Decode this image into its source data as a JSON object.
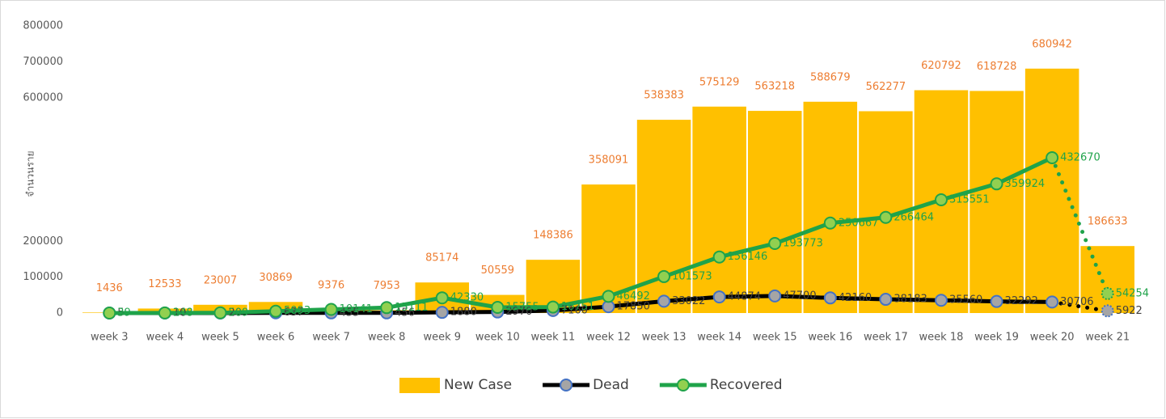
{
  "chart_data": {
    "type": "bar-line",
    "y_axis_label": "จำนวนราย",
    "categories": [
      "week 3",
      "week 4",
      "week 5",
      "week 6",
      "week 7",
      "week 8",
      "week 9",
      "week 10",
      "week 11",
      "week 12",
      "week 13",
      "week 14",
      "week 15",
      "week 16",
      "week 17",
      "week 18",
      "week 19",
      "week 20",
      "week 21"
    ],
    "series": [
      {
        "name": "New Case",
        "kind": "bar",
        "color": "#ffc000",
        "values": [
          1436,
          12533,
          23007,
          30869,
          9376,
          7953,
          85174,
          50559,
          148386,
          358091,
          538383,
          575129,
          563218,
          588679,
          562277,
          620792,
          618728,
          680942,
          186633
        ]
      },
      {
        "name": "Dead",
        "kind": "line",
        "color": "#000000",
        "marker_color": "#a5a5a5",
        "dotted_last_segment": true,
        "values": [
          5,
          10,
          20,
          637,
          455,
          456,
          1880,
          2970,
          7160,
          17850,
          33022,
          44874,
          47700,
          42160,
          38183,
          35560,
          32292,
          30706,
          5922
        ]
      },
      {
        "name": "Recovered",
        "kind": "line",
        "color": "#1fa34a",
        "marker_color": "#92d050",
        "dotted_last_segment": true,
        "values": [
          39,
          248,
          509,
          5093,
          10141,
          15111,
          42330,
          15755,
          16751,
          46492,
          101573,
          156146,
          193773,
          250667,
          266464,
          315551,
          359924,
          432670,
          54254
        ]
      }
    ],
    "ylim": [
      0,
      800000
    ],
    "yticks": [
      0,
      100000,
      200000,
      600000,
      700000,
      800000
    ],
    "legend": "bottom"
  }
}
